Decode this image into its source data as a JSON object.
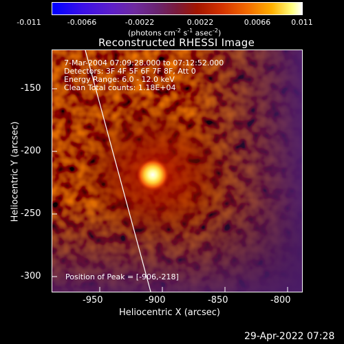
{
  "colorbar": {
    "ticks": [
      "-0.011",
      "-0.0066",
      "-0.0022",
      "0.0022",
      "0.0066",
      "0.011"
    ],
    "unit_label": "(photons cm",
    "unit_sup1": "-2",
    "unit_mid": " s",
    "unit_sup2": "-1",
    "unit_tail": " asec",
    "unit_sup3": "-2",
    "unit_end": ")"
  },
  "plot": {
    "title": "Reconstructed RHESSI Image",
    "xlabel": "Heliocentric X (arcsec)",
    "ylabel": "Heliocentric Y (arcsec)",
    "xticks": [
      "-950",
      "-900",
      "-850",
      "-800"
    ],
    "yticks": [
      "-150",
      "-200",
      "-250",
      "-300"
    ],
    "info": [
      " 7-Mar-2004 07:09:28.000 to 07:12:52.000",
      "Detectors: 3F 4F 5F 6F 7F 8F, Att 0",
      "Energy Range: 6.0 - 12.0 keV",
      "Clean    Total counts: 1.18E+04"
    ],
    "peak": "Position of Peak = [-906,-218]"
  },
  "footer": {
    "timestamp": "29-Apr-2022 07:28"
  },
  "colors": {
    "background": "#000000",
    "text": "#ffffff"
  },
  "chart_data": {
    "type": "heatmap",
    "title": "Reconstructed RHESSI Image",
    "xlabel": "Heliocentric X (arcsec)",
    "ylabel": "Heliocentric Y (arcsec)",
    "xlim": [
      -988,
      -788
    ],
    "ylim": [
      -313,
      -119
    ],
    "colorbar_range": [
      -0.011,
      0.011
    ],
    "peak": {
      "x": -906,
      "y": -218,
      "value": 0.011
    },
    "limb_line": [
      [
        -961,
        -119
      ],
      [
        -913,
        -313
      ]
    ]
  }
}
